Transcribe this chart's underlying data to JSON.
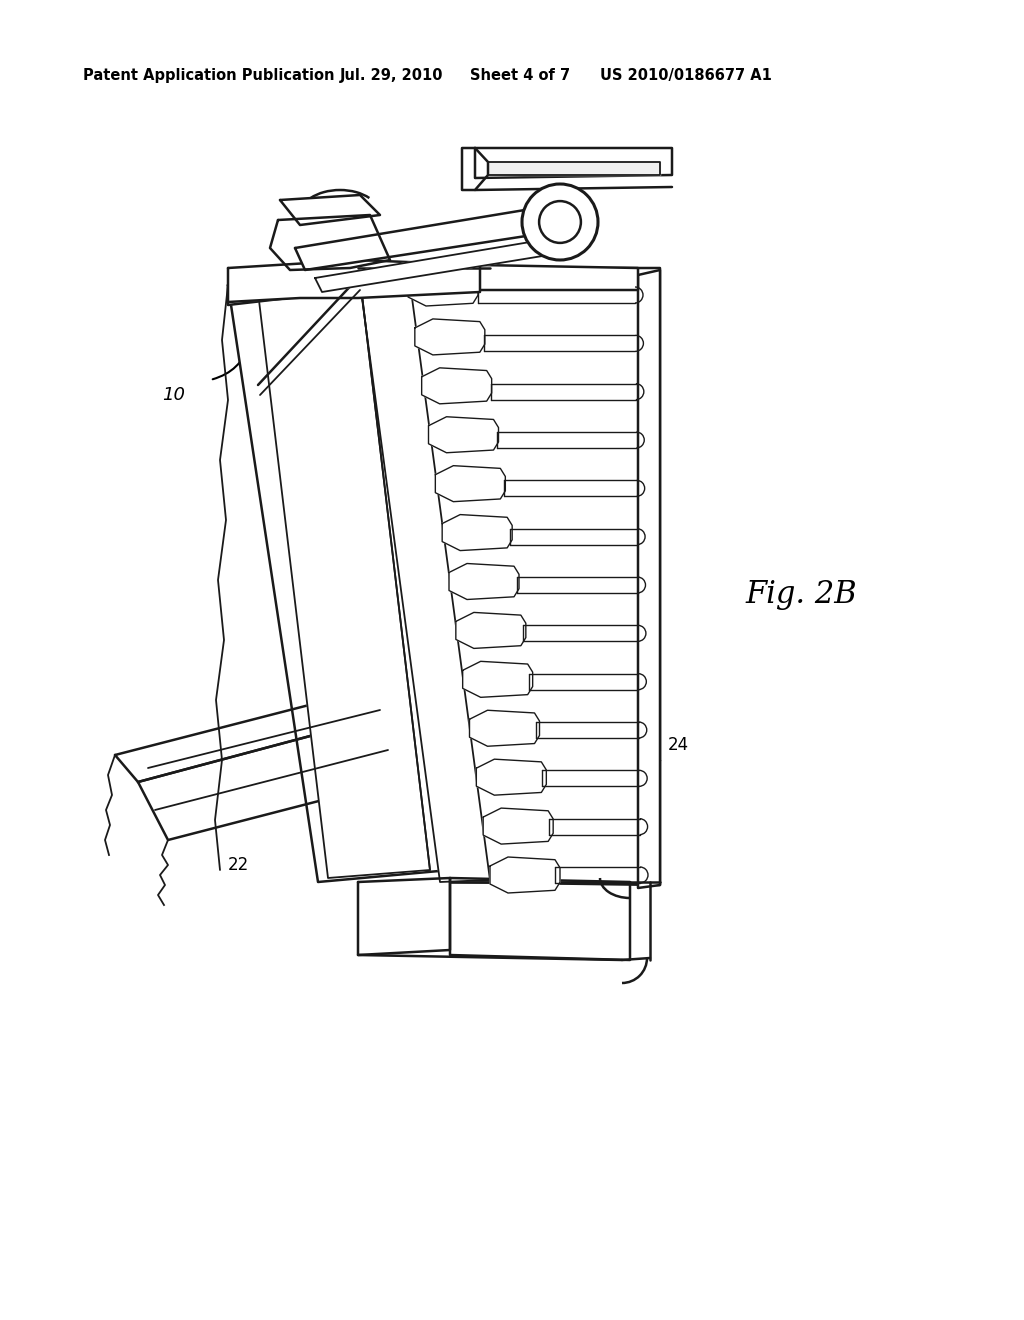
{
  "title": "Patent Application Publication",
  "date": "Jul. 29, 2010",
  "sheet": "Sheet 4 of 7",
  "patent_num": "US 2010/0186677 A1",
  "fig_label": "Fig. 2B",
  "ref_10": "10",
  "ref_22": "22",
  "ref_24": "24",
  "bg_color": "#ffffff",
  "line_color": "#1a1a1a",
  "header_fontsize": 10.5,
  "fig_label_fontsize": 20
}
